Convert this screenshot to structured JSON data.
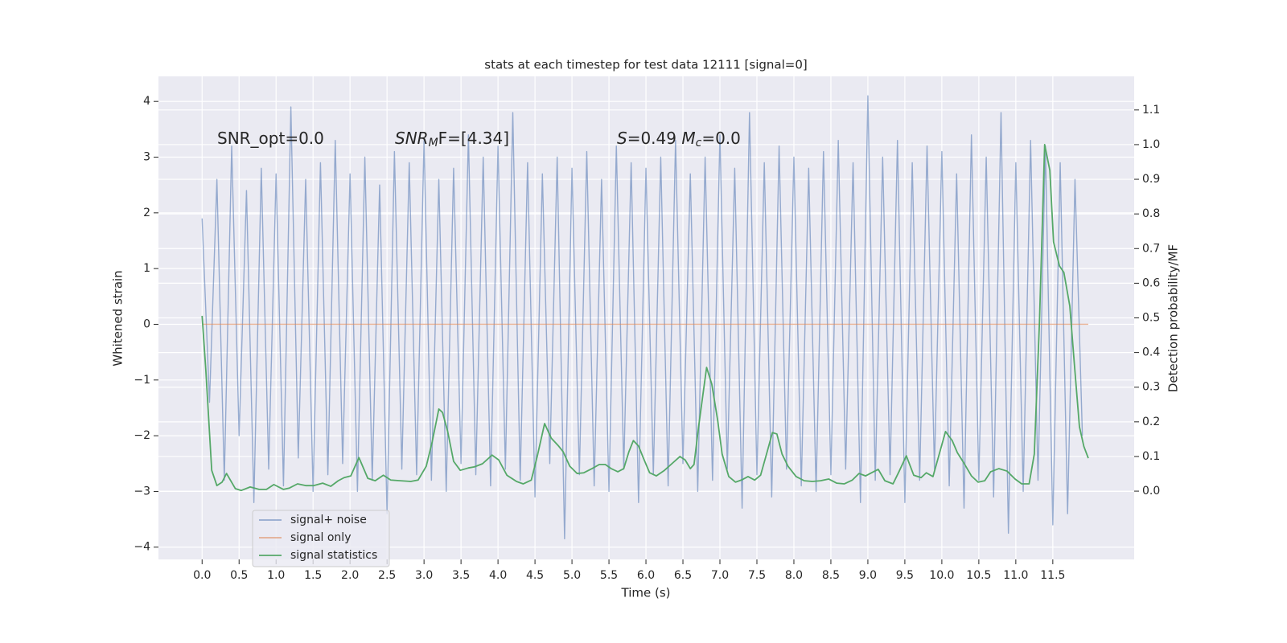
{
  "chart_data": {
    "type": "line",
    "title": "stats at each timestep for test data 12111 [signal=0]",
    "xlabel": "Time (s)",
    "ylabel": "Whitened strain",
    "y2label": "Detection probability/MF",
    "annotations": [
      [
        {
          "text": "SNR_opt=0.0",
          "style": "normal"
        }
      ],
      [
        {
          "text": "SNR",
          "style": "italic"
        },
        {
          "text": "M",
          "style": "italic-sub"
        },
        {
          "text": "F=[4.34]",
          "style": "normal"
        }
      ],
      [
        {
          "text": "S",
          "style": "italic"
        },
        {
          "text": "=0.49   ",
          "style": "normal"
        },
        {
          "text": "M",
          "style": "italic"
        },
        {
          "text": "c",
          "style": "italic-sub"
        },
        {
          "text": "=0.0",
          "style": "normal"
        }
      ]
    ],
    "xlim": [
      -0.59,
      12.6
    ],
    "ylim": [
      -4.22,
      4.45
    ],
    "y2lim": [
      -0.197,
      1.197
    ],
    "xticks": [
      {
        "value": 0,
        "label": "0.0"
      },
      0.5,
      {
        "value": 1,
        "label": "1.0"
      },
      1.5,
      {
        "value": 2,
        "label": "2.0"
      },
      2.5,
      {
        "value": 3,
        "label": "3.0"
      },
      3.5,
      {
        "value": 4,
        "label": "4.0"
      },
      4.5,
      {
        "value": 5,
        "label": "5.0"
      },
      5.5,
      {
        "value": 6,
        "label": "6.0"
      },
      6.5,
      {
        "value": 7,
        "label": "7.0"
      },
      7.5,
      {
        "value": 8,
        "label": "8.0"
      },
      8.5,
      {
        "value": 9,
        "label": "9.0"
      },
      9.5,
      {
        "value": 10,
        "label": "10.0"
      },
      10.5,
      {
        "value": 11,
        "label": "11.0"
      },
      11.5
    ],
    "yticks": [
      {
        "value": -4,
        "label": "−4"
      },
      {
        "value": -3,
        "label": "−3"
      },
      {
        "value": -2,
        "label": "−2"
      },
      {
        "value": -1,
        "label": "−1"
      },
      0,
      1,
      2,
      3,
      4
    ],
    "y2ticks": [
      {
        "value": 0,
        "label": "0.0"
      },
      0.1,
      0.2,
      0.3,
      0.4,
      0.5,
      0.6,
      0.7,
      0.8,
      0.9,
      {
        "value": 1,
        "label": "1.0"
      },
      1.1
    ],
    "grid": true,
    "legend": "lower left",
    "series": [
      {
        "name": "signal+ noise",
        "color": "#4c72b0",
        "alpha": 0.55,
        "x": [
          0.0,
          0.1,
          0.2,
          0.3,
          0.4,
          0.5,
          0.6,
          0.7,
          0.8,
          0.9,
          1.0,
          1.1,
          1.2,
          1.3,
          1.4,
          1.5,
          1.6,
          1.7,
          1.8,
          1.9,
          2.0,
          2.1,
          2.2,
          2.3,
          2.4,
          2.5,
          2.6,
          2.7,
          2.8,
          2.9,
          3.0,
          3.1,
          3.2,
          3.3,
          3.4,
          3.5,
          3.6,
          3.7,
          3.8,
          3.9,
          4.0,
          4.1,
          4.2,
          4.3,
          4.4,
          4.5,
          4.6,
          4.7,
          4.8,
          4.9,
          5.0,
          5.1,
          5.2,
          5.3,
          5.4,
          5.5,
          5.6,
          5.7,
          5.8,
          5.9,
          6.0,
          6.1,
          6.2,
          6.3,
          6.4,
          6.5,
          6.6,
          6.7,
          6.8,
          6.9,
          7.0,
          7.1,
          7.2,
          7.3,
          7.4,
          7.5,
          7.6,
          7.7,
          7.8,
          7.9,
          8.0,
          8.1,
          8.2,
          8.3,
          8.4,
          8.5,
          8.6,
          8.7,
          8.8,
          8.9,
          9.0,
          9.1,
          9.2,
          9.3,
          9.4,
          9.5,
          9.6,
          9.7,
          9.8,
          9.9,
          10.0,
          10.1,
          10.2,
          10.3,
          10.4,
          10.5,
          10.6,
          10.7,
          10.8,
          10.9,
          11.0,
          11.1,
          11.2,
          11.3,
          11.4,
          11.5,
          11.6,
          11.7,
          11.8,
          11.9
        ],
        "values": [
          1.9,
          -1.4,
          2.6,
          -2.8,
          3.2,
          -2.0,
          2.4,
          -3.2,
          2.8,
          -2.6,
          2.7,
          -2.9,
          3.9,
          -2.4,
          2.6,
          -3.0,
          2.9,
          -2.7,
          3.3,
          -2.5,
          2.7,
          -3.0,
          3.0,
          -2.8,
          2.5,
          -3.4,
          3.1,
          -2.6,
          2.9,
          -2.7,
          3.3,
          -2.8,
          2.6,
          -3.0,
          2.8,
          -2.5,
          3.4,
          -2.7,
          3.0,
          -2.9,
          3.2,
          -2.6,
          3.8,
          -2.8,
          2.9,
          -3.1,
          2.7,
          -2.5,
          3.0,
          -3.85,
          2.8,
          -2.7,
          3.1,
          -2.9,
          2.6,
          -3.0,
          3.2,
          -2.6,
          2.9,
          -3.2,
          2.8,
          -2.7,
          3.0,
          -2.9,
          3.3,
          -2.5,
          2.7,
          -3.0,
          3.0,
          -2.8,
          3.4,
          -2.6,
          2.8,
          -3.3,
          3.8,
          -2.7,
          2.9,
          -3.1,
          3.2,
          -2.6,
          3.0,
          -2.9,
          2.8,
          -3.0,
          3.1,
          -2.7,
          3.3,
          -2.6,
          2.9,
          -3.2,
          4.1,
          -2.8,
          3.0,
          -2.7,
          3.3,
          -3.2,
          2.9,
          -2.8,
          3.2,
          -2.6,
          3.1,
          -2.9,
          2.7,
          -3.3,
          3.4,
          -2.8,
          3.0,
          -3.1,
          3.8,
          -3.75,
          2.9,
          -3.0,
          3.3,
          -2.8,
          3.2,
          -3.6,
          2.9,
          -3.4,
          2.6,
          -2.0
        ]
      },
      {
        "name": "signal only",
        "color": "#dd8452",
        "alpha": 0.6,
        "x": [
          0.0,
          11.98
        ],
        "values": [
          0,
          0
        ]
      },
      {
        "name": "signal statistics",
        "color": "#55a868",
        "alpha": 1,
        "axis": "y2",
        "x": [
          0.0,
          0.05,
          0.13,
          0.2,
          0.27,
          0.33,
          0.45,
          0.53,
          0.65,
          0.77,
          0.87,
          0.97,
          1.1,
          1.18,
          1.29,
          1.4,
          1.51,
          1.63,
          1.74,
          1.84,
          1.92,
          2.01,
          2.12,
          2.24,
          2.34,
          2.45,
          2.55,
          2.68,
          2.82,
          2.92,
          3.03,
          3.11,
          3.2,
          3.25,
          3.32,
          3.4,
          3.49,
          3.6,
          3.68,
          3.79,
          3.92,
          4.01,
          4.12,
          4.25,
          4.34,
          4.45,
          4.53,
          4.63,
          4.72,
          4.82,
          4.88,
          4.97,
          5.07,
          5.16,
          5.27,
          5.37,
          5.45,
          5.53,
          5.62,
          5.7,
          5.77,
          5.83,
          5.9,
          5.97,
          6.05,
          6.14,
          6.25,
          6.36,
          6.46,
          6.53,
          6.6,
          6.65,
          6.71,
          6.82,
          6.89,
          6.97,
          7.03,
          7.12,
          7.21,
          7.29,
          7.38,
          7.47,
          7.55,
          7.63,
          7.71,
          7.77,
          7.84,
          7.92,
          8.03,
          8.14,
          8.25,
          8.36,
          8.47,
          8.58,
          8.68,
          8.79,
          8.88,
          8.97,
          9.05,
          9.14,
          9.23,
          9.34,
          9.42,
          9.52,
          9.62,
          9.72,
          9.79,
          9.88,
          9.97,
          10.05,
          10.14,
          10.21,
          10.29,
          10.4,
          10.49,
          10.58,
          10.66,
          10.77,
          10.88,
          10.99,
          11.08,
          11.18,
          11.25,
          11.32,
          11.39,
          11.46,
          11.51,
          11.59,
          11.65,
          11.73,
          11.79,
          11.86,
          11.92,
          11.98
        ],
        "values": [
          0.506,
          0.35,
          0.06,
          0.016,
          0.026,
          0.051,
          0.007,
          0.002,
          0.012,
          0.005,
          0.005,
          0.019,
          0.005,
          0.009,
          0.021,
          0.016,
          0.016,
          0.023,
          0.014,
          0.03,
          0.039,
          0.044,
          0.097,
          0.037,
          0.03,
          0.046,
          0.032,
          0.03,
          0.028,
          0.032,
          0.072,
          0.142,
          0.237,
          0.227,
          0.172,
          0.086,
          0.06,
          0.067,
          0.07,
          0.079,
          0.104,
          0.09,
          0.046,
          0.028,
          0.021,
          0.032,
          0.1,
          0.195,
          0.153,
          0.13,
          0.114,
          0.072,
          0.051,
          0.053,
          0.065,
          0.077,
          0.077,
          0.065,
          0.056,
          0.065,
          0.114,
          0.146,
          0.13,
          0.093,
          0.053,
          0.044,
          0.06,
          0.081,
          0.1,
          0.09,
          0.065,
          0.077,
          0.183,
          0.357,
          0.309,
          0.204,
          0.107,
          0.042,
          0.026,
          0.032,
          0.042,
          0.032,
          0.046,
          0.107,
          0.169,
          0.165,
          0.107,
          0.072,
          0.042,
          0.03,
          0.028,
          0.03,
          0.035,
          0.023,
          0.021,
          0.032,
          0.051,
          0.044,
          0.053,
          0.063,
          0.03,
          0.021,
          0.056,
          0.102,
          0.046,
          0.039,
          0.053,
          0.042,
          0.111,
          0.172,
          0.146,
          0.111,
          0.084,
          0.044,
          0.026,
          0.03,
          0.056,
          0.065,
          0.058,
          0.035,
          0.021,
          0.021,
          0.107,
          0.49,
          1.0,
          0.926,
          0.719,
          0.65,
          0.631,
          0.534,
          0.371,
          0.186,
          0.129,
          0.095
        ]
      }
    ]
  }
}
